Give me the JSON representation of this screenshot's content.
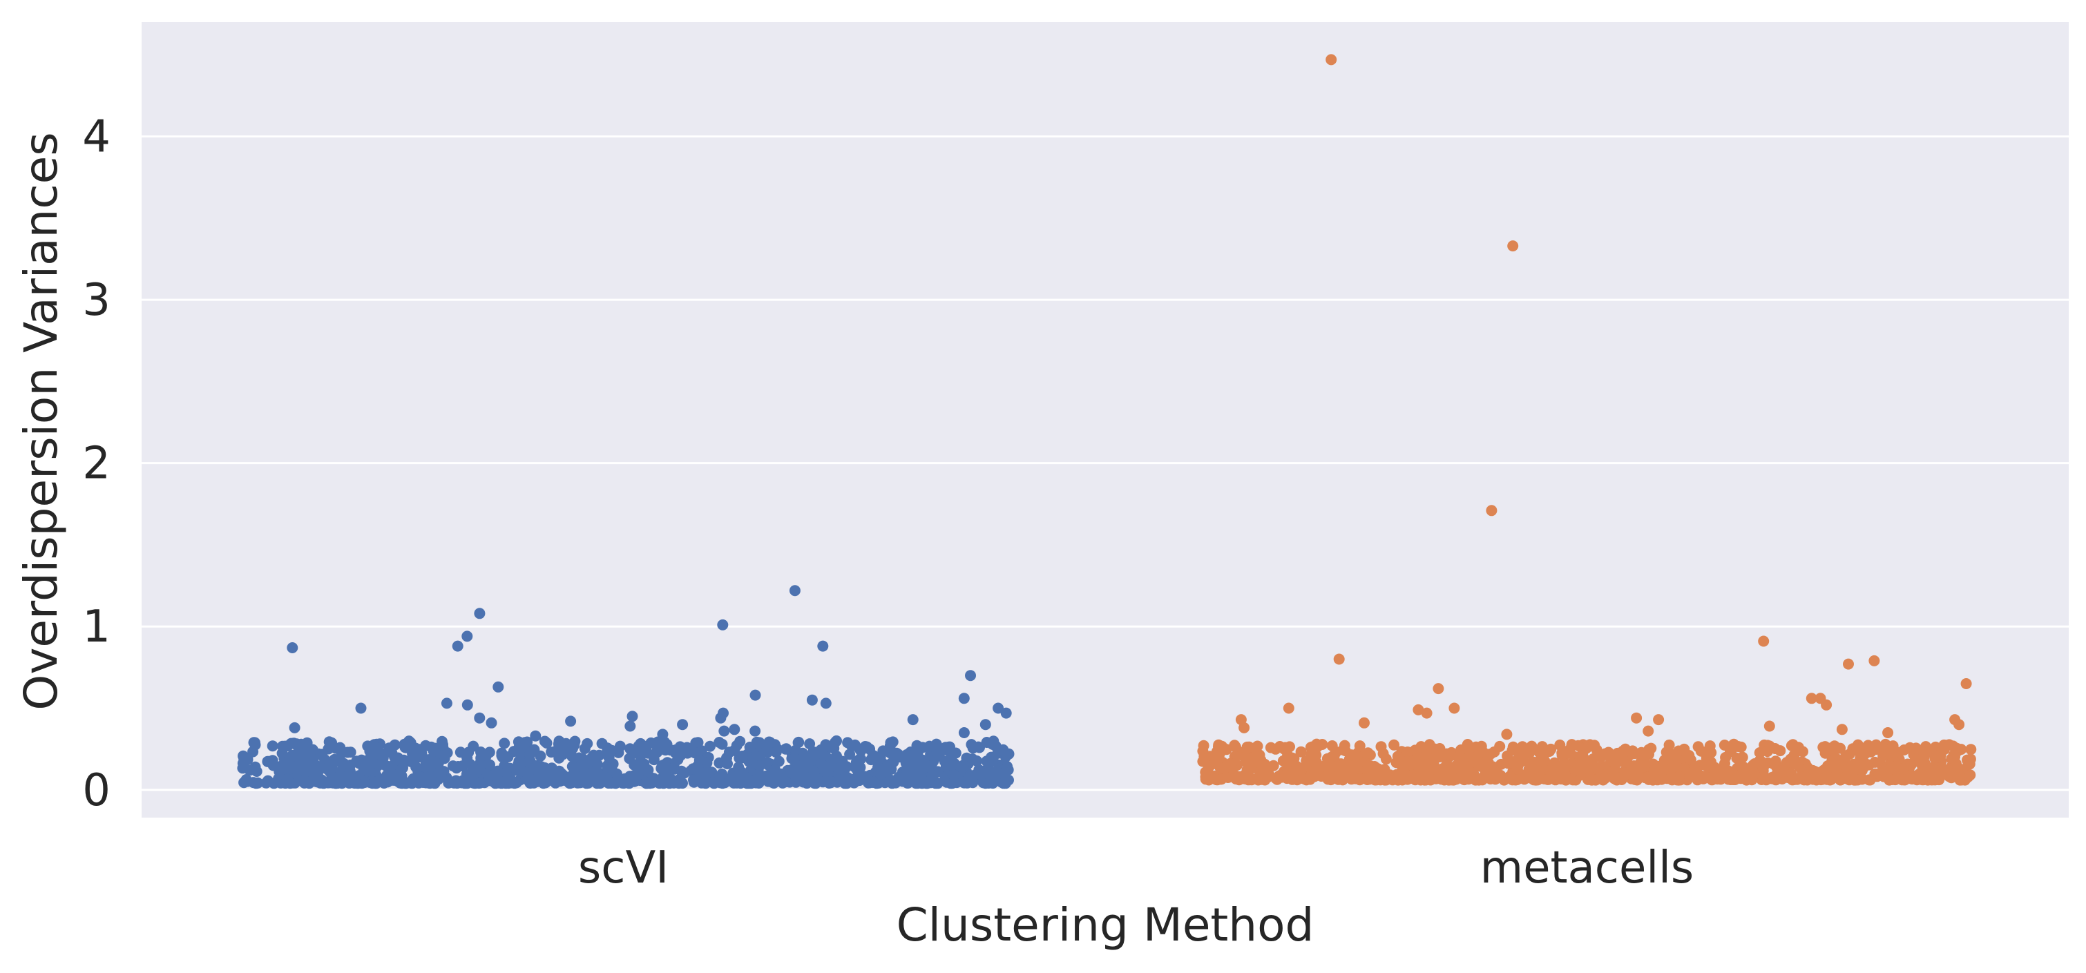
{
  "chart_data": {
    "type": "scatter",
    "style": "strip plot with horizontal jitter",
    "title": "",
    "xlabel": "Clustering Method",
    "ylabel": "Overdispersion Variances",
    "categories": [
      "scVI",
      "metacells"
    ],
    "ylim": [
      -0.17,
      4.7
    ],
    "yticks": [
      0,
      1,
      2,
      3,
      4
    ],
    "grid": true,
    "legend": "none",
    "background_color": "#eaeaf2",
    "gridline_color": "#ffffff",
    "series": [
      {
        "category": "scVI",
        "color": "#4c72b0",
        "typical_range": [
          0.04,
          0.3
        ],
        "n_points_estimated": 1200,
        "notable_values": [
          1.22,
          1.08,
          1.01,
          0.94,
          0.88,
          0.88,
          0.87,
          0.7,
          0.63,
          0.58,
          0.56,
          0.55,
          0.53,
          0.53,
          0.52,
          0.5,
          0.5,
          0.47,
          0.47,
          0.45,
          0.44,
          0.44,
          0.43,
          0.42,
          0.41,
          0.4,
          0.4,
          0.39,
          0.38,
          0.37,
          0.36,
          0.36,
          0.35,
          0.34,
          0.33
        ]
      },
      {
        "category": "metacells",
        "color": "#dd8452",
        "typical_range": [
          0.06,
          0.28
        ],
        "n_points_estimated": 1200,
        "notable_values": [
          4.47,
          3.33,
          1.71,
          0.91,
          0.8,
          0.79,
          0.77,
          0.65,
          0.62,
          0.56,
          0.56,
          0.52,
          0.5,
          0.5,
          0.49,
          0.47,
          0.44,
          0.43,
          0.43,
          0.43,
          0.41,
          0.4,
          0.39,
          0.38,
          0.37,
          0.36,
          0.35,
          0.34
        ]
      }
    ]
  }
}
